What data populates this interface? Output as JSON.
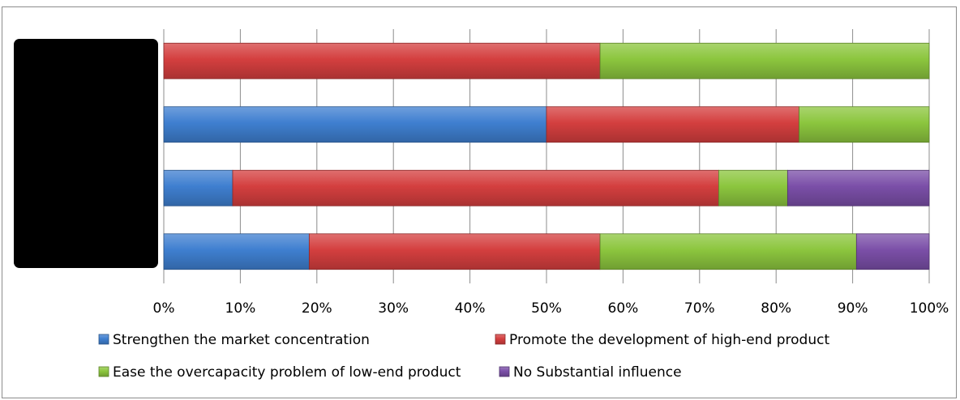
{
  "chart_data": {
    "type": "bar",
    "orientation": "horizontal",
    "stacking": "percent",
    "categories": [
      "",
      "",
      "",
      ""
    ],
    "series": [
      {
        "name": "Strengthen the market concentration",
        "color": "#3f7fd0",
        "values": [
          0,
          50,
          9,
          19
        ]
      },
      {
        "name": "Promote the development of high-end product",
        "color": "#d43f3f",
        "values": [
          57,
          33,
          63.5,
          38
        ]
      },
      {
        "name": "Ease the overcapacity problem of low-end product",
        "color": "#8cc63e",
        "values": [
          43,
          17,
          9,
          33.5
        ]
      },
      {
        "name": "No Substantial influence",
        "color": "#7b4fa8",
        "values": [
          0,
          0,
          18.5,
          9.5
        ]
      }
    ],
    "xlim": [
      0,
      100
    ],
    "x_ticks": [
      "0%",
      "10%",
      "20%",
      "30%",
      "40%",
      "50%",
      "60%",
      "70%",
      "80%",
      "90%",
      "100%"
    ],
    "grid": true,
    "legend_position": "bottom",
    "title": "",
    "xlabel": "",
    "ylabel": ""
  }
}
